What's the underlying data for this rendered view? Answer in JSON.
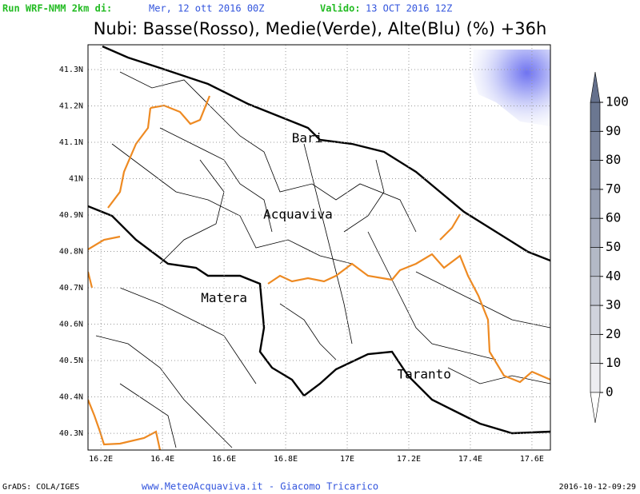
{
  "header": {
    "run_label": "Run WRF-NMM 2km di:",
    "run_date": "Mer, 12 ott 2016 00Z",
    "valid_label": "Valido:",
    "valid_date": "13 OCT 2016 12Z",
    "title": "Nubi: Basse(Rosso), Medie(Verde), Alte(Blu) (%) +36h"
  },
  "map": {
    "lonlim": [
      16.158,
      17.66
    ],
    "latlim": [
      40.254,
      41.368
    ],
    "lat_ticks": [
      {
        "value": 41.3,
        "label": "41.3N"
      },
      {
        "value": 41.2,
        "label": "41.2N"
      },
      {
        "value": 41.1,
        "label": "41.1N"
      },
      {
        "value": 41.0,
        "label": "41N"
      },
      {
        "value": 40.9,
        "label": "40.9N"
      },
      {
        "value": 40.8,
        "label": "40.8N"
      },
      {
        "value": 40.7,
        "label": "40.7N"
      },
      {
        "value": 40.6,
        "label": "40.6N"
      },
      {
        "value": 40.5,
        "label": "40.5N"
      },
      {
        "value": 40.4,
        "label": "40.4N"
      },
      {
        "value": 40.3,
        "label": "40.3N"
      }
    ],
    "lon_ticks": [
      {
        "value": 16.2,
        "label": "16.2E"
      },
      {
        "value": 16.4,
        "label": "16.4E"
      },
      {
        "value": 16.6,
        "label": "16.6E"
      },
      {
        "value": 16.8,
        "label": "16.8E"
      },
      {
        "value": 17.0,
        "label": "17E"
      },
      {
        "value": 17.2,
        "label": "17.2E"
      },
      {
        "value": 17.4,
        "label": "17.4E"
      },
      {
        "value": 17.6,
        "label": "17.6E"
      }
    ],
    "cities": [
      {
        "name": "Bari",
        "lon": 16.87,
        "lat": 41.11
      },
      {
        "name": "Acquaviva",
        "lon": 16.84,
        "lat": 40.9
      },
      {
        "name": "Matera",
        "lon": 16.6,
        "lat": 40.67
      },
      {
        "name": "Taranto",
        "lon": 17.25,
        "lat": 40.46
      }
    ]
  },
  "colorbar": {
    "lim": [
      0,
      100
    ],
    "ticks": [
      100,
      90,
      80,
      70,
      60,
      50,
      40,
      30,
      20,
      10,
      0
    ]
  },
  "footer": {
    "left": "GrADS: COLA/IGES",
    "center": "www.MeteoAcquaviva.it - Giacomo Tricarico",
    "right": "2016-10-12-09:29"
  }
}
